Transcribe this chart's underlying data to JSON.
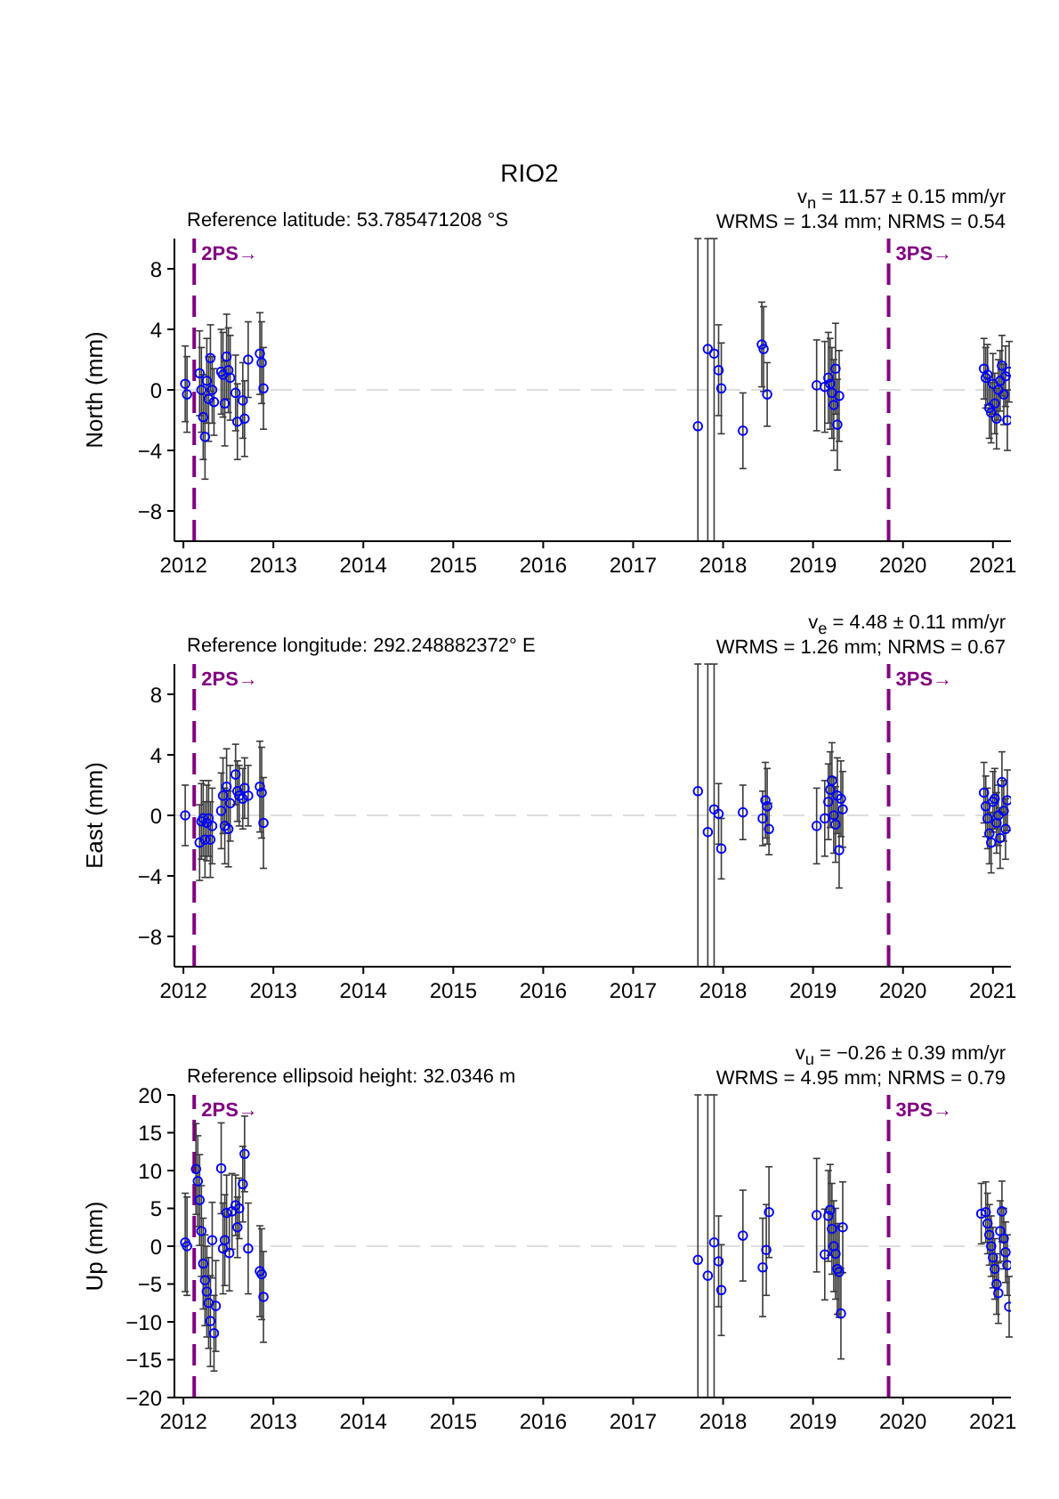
{
  "chart_data": [
    {
      "type": "scatter",
      "title": "RIO2",
      "ylabel": "North (mm)",
      "annotations": [
        "Reference latitude: 53.785471208 °S",
        "v$_{n}$ = 11.57 ± 0.15 mm/yr",
        "WRMS = 1.34 mm; NRMS = 0.54"
      ],
      "xlim": [
        2011.9,
        2021.2
      ],
      "xticks": [
        2012,
        2013,
        2014,
        2015,
        2016,
        2017,
        2018,
        2019,
        2020,
        2021
      ],
      "ylim": [
        -10,
        10
      ],
      "yticks": [
        -8,
        -4,
        0,
        4,
        8
      ],
      "marker": "circle",
      "ref_lines": [
        {
          "axis": "x",
          "value": 2012.12,
          "label": "2PS→",
          "color": "#800080",
          "line_style": "dashed"
        },
        {
          "axis": "x",
          "value": 2019.84,
          "label": "3PS→",
          "color": "#800080",
          "line_style": "dashed"
        },
        {
          "axis": "y",
          "value": 0,
          "label": null,
          "color": "#dddddd",
          "line_style": "dashed"
        }
      ],
      "series": [
        {
          "color": "#0000ff",
          "x": [
            2012.02,
            2012.04,
            2012.18,
            2012.2,
            2012.22,
            2012.24,
            2012.26,
            2012.28,
            2012.3,
            2012.32,
            2012.34,
            2012.42,
            2012.44,
            2012.46,
            2012.48,
            2012.5,
            2012.52,
            2012.58,
            2012.6,
            2012.66,
            2012.68,
            2012.72,
            2012.85,
            2012.87,
            2012.89,
            2017.72,
            2017.83,
            2017.9,
            2017.95,
            2017.98,
            2018.22,
            2018.43,
            2018.45,
            2018.49,
            2019.04,
            2019.13,
            2019.17,
            2019.19,
            2019.21,
            2019.23,
            2019.25,
            2019.27,
            2019.29,
            2020.9,
            2020.92,
            2020.94,
            2020.96,
            2020.98,
            2021,
            2021.02,
            2021.04,
            2021.06,
            2021.08,
            2021.1,
            2021.12,
            2021.14,
            2021.16,
            2021.18
          ],
          "values": [
            0.4,
            -0.3,
            1.1,
            0,
            -1.8,
            -3.1,
            0.6,
            -0.6,
            2.1,
            0,
            -0.8,
            1.2,
            1,
            -0.9,
            2.2,
            1.3,
            0.8,
            -0.2,
            -2.1,
            -0.7,
            -1.9,
            2,
            2.4,
            1.8,
            0.1,
            -2.4,
            2.7,
            2.4,
            1.3,
            0.1,
            -2.7,
            3,
            2.7,
            -0.3,
            0.3,
            0.2,
            0.8,
            0.4,
            -0.2,
            -1,
            1.4,
            -2.3,
            -0.4,
            1.4,
            0.8,
            1,
            -1.2,
            -1.5,
            0.4,
            -0.9,
            -1.9,
            0,
            0.6,
            1.6,
            -0.3,
            0.9,
            -2,
            1.2
          ],
          "errors": [
            2.5,
            2.5,
            2.8,
            2.8,
            2.8,
            2.8,
            2.8,
            2.8,
            2.2,
            2.2,
            2.2,
            2.8,
            2.8,
            2.8,
            2.8,
            2.8,
            2.8,
            2.5,
            2.5,
            2.5,
            2.5,
            2.5,
            2.7,
            2.7,
            2.7,
            [
              -10,
              10
            ],
            [
              -10,
              10
            ],
            [
              -10,
              10
            ],
            3,
            3,
            2.5,
            2.8,
            2.8,
            2.1,
            3,
            3,
            3,
            3,
            3,
            3,
            3,
            3,
            3,
            2,
            2,
            2,
            2,
            2,
            2,
            2,
            2,
            2,
            2,
            2,
            2,
            2,
            2,
            2
          ]
        }
      ]
    },
    {
      "type": "scatter",
      "ylabel": "East (mm)",
      "annotations": [
        "Reference longitude: 292.248882372° E",
        "v$_{e}$ = 4.48 ± 0.11 mm/yr",
        "WRMS = 1.26 mm; NRMS = 0.67"
      ],
      "xlim": [
        2011.9,
        2021.2
      ],
      "xticks": [
        2012,
        2013,
        2014,
        2015,
        2016,
        2017,
        2018,
        2019,
        2020,
        2021
      ],
      "ylim": [
        -10,
        10
      ],
      "yticks": [
        -8,
        -4,
        0,
        4,
        8
      ],
      "marker": "circle",
      "ref_lines": [
        {
          "axis": "x",
          "value": 2012.12,
          "label": "2PS→",
          "color": "#800080",
          "line_style": "dashed"
        },
        {
          "axis": "x",
          "value": 2019.84,
          "label": "3PS→",
          "color": "#800080",
          "line_style": "dashed"
        },
        {
          "axis": "y",
          "value": 0,
          "label": null,
          "color": "#dddddd",
          "line_style": "dashed"
        }
      ],
      "series": [
        {
          "color": "#0000ff",
          "x": [
            2012.02,
            2012.18,
            2012.2,
            2012.22,
            2012.24,
            2012.26,
            2012.28,
            2012.3,
            2012.32,
            2012.42,
            2012.44,
            2012.46,
            2012.48,
            2012.5,
            2012.52,
            2012.58,
            2012.6,
            2012.62,
            2012.66,
            2012.68,
            2012.72,
            2012.85,
            2012.87,
            2012.89,
            2017.72,
            2017.83,
            2017.9,
            2017.95,
            2017.98,
            2018.22,
            2018.44,
            2018.47,
            2018.49,
            2018.51,
            2019.04,
            2019.13,
            2019.17,
            2019.19,
            2019.21,
            2019.23,
            2019.25,
            2019.27,
            2019.29,
            2019.31,
            2019.33,
            2020.9,
            2020.92,
            2020.94,
            2020.96,
            2020.98,
            2021,
            2021.02,
            2021.04,
            2021.06,
            2021.08,
            2021.1,
            2021.12,
            2021.14,
            2021.16
          ],
          "values": [
            0,
            -1.8,
            -0.4,
            -0.2,
            -1.6,
            -0.5,
            -0.2,
            -1.6,
            -0.7,
            0.3,
            1.3,
            -0.7,
            1.9,
            -0.9,
            0.8,
            2.7,
            1.6,
            1.3,
            1.1,
            1.8,
            1.3,
            1.9,
            1.5,
            -0.5,
            1.6,
            -1.1,
            0.4,
            0.1,
            -2.2,
            0.2,
            -0.2,
            1,
            0.6,
            -0.9,
            -0.7,
            -0.2,
            0.9,
            1.7,
            2.3,
            0,
            -0.6,
            1.3,
            -2.3,
            1.1,
            0.4,
            1.5,
            0.6,
            -0.2,
            -1.2,
            -1.8,
            0.9,
            1.1,
            -0.5,
            0,
            -1.5,
            2.2,
            0.3,
            -0.9,
            1
          ],
          "errors": [
            2,
            2.5,
            2.5,
            2.5,
            2.5,
            2.5,
            2.5,
            2.5,
            2.5,
            2.5,
            2.5,
            2.5,
            2.5,
            2.5,
            2.5,
            2,
            2,
            2,
            2,
            2,
            2,
            3,
            3,
            3,
            [
              -10,
              10
            ],
            [
              -10,
              10
            ],
            [
              -10,
              10
            ],
            2,
            2,
            1.8,
            1.8,
            2.5,
            2.5,
            1.7,
            2.5,
            2.5,
            2.5,
            2.5,
            2.5,
            2.5,
            2.5,
            2.5,
            2.5,
            2.5,
            2.5,
            2,
            2,
            2,
            2,
            2,
            2,
            2,
            2,
            2,
            2,
            2,
            2,
            2,
            2
          ]
        }
      ]
    },
    {
      "type": "scatter",
      "ylabel": "Up (mm)",
      "annotations": [
        "Reference ellipsoid height: 32.0346 m",
        "v$_{u}$ = −0.26 ± 0.39 mm/yr",
        "WRMS = 4.95 mm; NRMS = 0.79"
      ],
      "xlim": [
        2011.9,
        2021.2
      ],
      "xticks": [
        2012,
        2013,
        2014,
        2015,
        2016,
        2017,
        2018,
        2019,
        2020,
        2021
      ],
      "ylim": [
        -20,
        20
      ],
      "yticks": [
        -20,
        -15,
        -10,
        -5,
        0,
        5,
        10,
        15,
        20
      ],
      "marker": "circle",
      "ref_lines": [
        {
          "axis": "x",
          "value": 2012.12,
          "label": "2PS→",
          "color": "#800080",
          "line_style": "dashed"
        },
        {
          "axis": "x",
          "value": 2019.84,
          "label": "3PS→",
          "color": "#800080",
          "line_style": "dashed"
        },
        {
          "axis": "y",
          "value": 0,
          "label": null,
          "color": "#dddddd",
          "line_style": "dashed"
        }
      ],
      "series": [
        {
          "color": "#0000ff",
          "x": [
            2012.02,
            2012.04,
            2012.14,
            2012.16,
            2012.18,
            2012.2,
            2012.22,
            2012.24,
            2012.26,
            2012.28,
            2012.3,
            2012.32,
            2012.34,
            2012.36,
            2012.42,
            2012.44,
            2012.46,
            2012.48,
            2012.51,
            2012.54,
            2012.58,
            2012.6,
            2012.62,
            2012.66,
            2012.68,
            2012.72,
            2012.85,
            2012.87,
            2012.89,
            2017.72,
            2017.83,
            2017.9,
            2017.95,
            2017.98,
            2018.22,
            2018.44,
            2018.48,
            2018.51,
            2019.04,
            2019.13,
            2019.17,
            2019.19,
            2019.21,
            2019.23,
            2019.25,
            2019.27,
            2019.29,
            2019.31,
            2019.33,
            2020.87,
            2020.92,
            2020.94,
            2020.96,
            2020.98,
            2021,
            2021.02,
            2021.04,
            2021.06,
            2021.08,
            2021.1,
            2021.12,
            2021.14,
            2021.16,
            2021.18
          ],
          "values": [
            0.5,
            0,
            10.2,
            8.6,
            6.1,
            2,
            -2.3,
            -4.5,
            -6,
            -7.5,
            -9.9,
            0.8,
            -11.5,
            -7.9,
            10.3,
            -0.3,
            0.8,
            4.4,
            -0.9,
            4.6,
            5.4,
            2.5,
            5,
            8.2,
            12.2,
            -0.3,
            -3.3,
            -3.7,
            -6.7,
            -1.8,
            -3.9,
            0.5,
            -2,
            -5.8,
            1.4,
            -2.8,
            -0.5,
            4.5,
            4.1,
            -1.1,
            4,
            4.8,
            2.3,
            0,
            -1,
            -3,
            -3.4,
            -8.9,
            2.5,
            4.3,
            4.5,
            3,
            1.5,
            0,
            -1.5,
            -3,
            -5,
            -6.2,
            2,
            4.6,
            1,
            -0.8,
            -2.5,
            -8
          ],
          "errors": [
            6.5,
            6.5,
            6,
            6,
            6,
            6,
            6,
            6,
            6,
            6,
            6,
            5,
            5,
            6,
            6,
            6,
            6,
            5,
            5,
            5,
            4,
            4,
            4,
            5,
            5,
            6,
            6,
            6,
            6,
            [
              -20,
              20
            ],
            [
              -20,
              20
            ],
            [
              -20,
              20
            ],
            6,
            6,
            6,
            6.5,
            6,
            6,
            7.5,
            6,
            6,
            6,
            6,
            6,
            6,
            6,
            6,
            6,
            6,
            4,
            4,
            4,
            4,
            4,
            4,
            4,
            4,
            4,
            4,
            4,
            4,
            4,
            4,
            4
          ]
        }
      ]
    }
  ]
}
